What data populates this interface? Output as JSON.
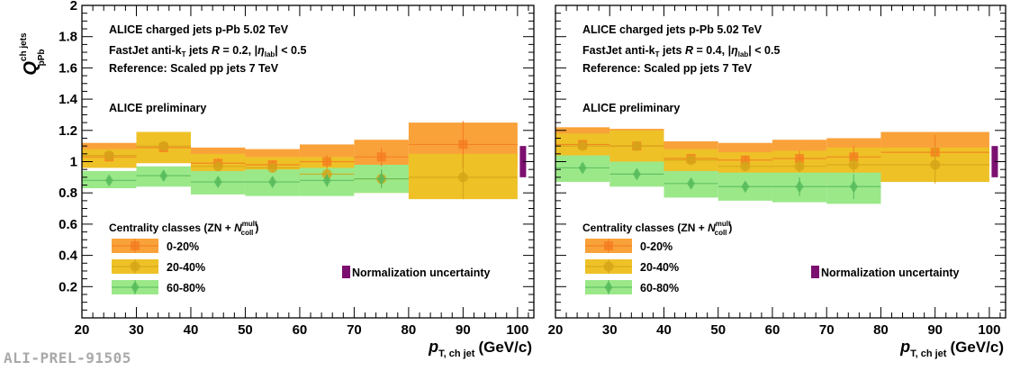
{
  "footer_id": "ALI-PREL-91505",
  "colors": {
    "c0_20": "#f47a1f",
    "c0_20_fill": "#f9a23a",
    "c20_40": "#d4a418",
    "c20_40_fill": "#eec127",
    "c60_80": "#54b95a",
    "c60_80_fill": "#9be889",
    "norm": "#7b1070"
  },
  "chart_data": [
    {
      "type": "scatter",
      "ylabel": "Q",
      "ylabel_sup": "ch jets",
      "ylabel_sub": "pPb",
      "xlabel": "p",
      "xlabel_sub": "T, ch jet",
      "xlabel_unit": "(GeV/c)",
      "xlim": [
        20,
        103
      ],
      "ylim": [
        0,
        2
      ],
      "x_ticks": [
        "20",
        "30",
        "40",
        "50",
        "60",
        "70",
        "80",
        "90",
        "100"
      ],
      "y_ticks": [
        "0.2",
        "0.4",
        "0.6",
        "0.8",
        "1",
        "1.2",
        "1.4",
        "1.6",
        "1.8",
        "2"
      ],
      "annotations": [
        "ALICE charged jets p-Pb 5.02 TeV",
        "FastJet anti-kT jets R = 0.2, |ηlab| < 0.5",
        "Reference: Scaled pp jets 7 TeV",
        "ALICE preliminary"
      ],
      "legend_title": "Centrality classes (ZN + Ncoll mult)",
      "legend_placement": "bottom-left",
      "normalization_label": "Normalization uncertainty",
      "normalization_band": {
        "x": 101,
        "ylow": 0.9,
        "yhigh": 1.1
      },
      "series": [
        {
          "name": "0-20%",
          "marker": "square",
          "bins": [
            [
              20,
              30
            ],
            [
              30,
              40
            ],
            [
              40,
              50
            ],
            [
              50,
              60
            ],
            [
              60,
              70
            ],
            [
              70,
              80
            ],
            [
              80,
              100
            ]
          ],
          "values": [
            1.03,
            1.09,
            0.99,
            0.98,
            1.0,
            1.03,
            1.11
          ],
          "stat_low": [
            1.01,
            1.06,
            0.96,
            0.95,
            0.96,
            0.97,
            0.96
          ],
          "stat_high": [
            1.05,
            1.12,
            1.02,
            1.01,
            1.04,
            1.09,
            1.26
          ],
          "sys_low": [
            0.98,
            1.0,
            0.94,
            0.92,
            0.92,
            0.91,
            0.97
          ],
          "sys_high": [
            1.12,
            1.19,
            1.09,
            1.08,
            1.11,
            1.14,
            1.25
          ]
        },
        {
          "name": "20-40%",
          "marker": "circle",
          "bins": [
            [
              20,
              30
            ],
            [
              30,
              40
            ],
            [
              40,
              50
            ],
            [
              50,
              60
            ],
            [
              60,
              70
            ],
            [
              70,
              80
            ],
            [
              80,
              100
            ]
          ],
          "values": [
            1.04,
            1.1,
            0.97,
            0.96,
            0.92,
            0.89,
            0.9
          ],
          "stat_low": [
            1.02,
            1.07,
            0.94,
            0.93,
            0.88,
            0.84,
            0.76
          ],
          "stat_high": [
            1.06,
            1.13,
            1.0,
            0.99,
            0.96,
            0.94,
            1.04
          ],
          "sys_low": [
            0.96,
            0.99,
            0.9,
            0.88,
            0.84,
            0.8,
            0.76
          ],
          "sys_high": [
            1.08,
            1.19,
            1.05,
            1.03,
            1.03,
            0.98,
            1.05
          ]
        },
        {
          "name": "60-80%",
          "marker": "diamond",
          "bins": [
            [
              20,
              30
            ],
            [
              30,
              40
            ],
            [
              40,
              50
            ],
            [
              50,
              60
            ],
            [
              60,
              70
            ],
            [
              70,
              80
            ]
          ],
          "values": [
            0.88,
            0.91,
            0.87,
            0.87,
            0.88,
            0.89
          ],
          "stat_low": [
            0.86,
            0.88,
            0.84,
            0.84,
            0.84,
            0.83
          ],
          "stat_high": [
            0.9,
            0.94,
            0.9,
            0.9,
            0.92,
            0.95
          ],
          "sys_low": [
            0.83,
            0.84,
            0.79,
            0.78,
            0.78,
            0.8
          ],
          "sys_high": [
            0.94,
            0.97,
            0.94,
            0.95,
            0.96,
            0.98
          ]
        }
      ]
    },
    {
      "type": "scatter",
      "ylabel": "",
      "xlabel": "p",
      "xlabel_sub": "T, ch jet",
      "xlabel_unit": "(GeV/c)",
      "xlim": [
        20,
        103
      ],
      "ylim": [
        0,
        2
      ],
      "x_ticks": [
        "20",
        "30",
        "40",
        "50",
        "60",
        "70",
        "80",
        "90",
        "100"
      ],
      "y_ticks": [],
      "annotations": [
        "ALICE charged jets p-Pb 5.02 TeV",
        "FastJet anti-kT jets R = 0.4, |ηlab| < 0.5",
        "Reference: Scaled pp jets 7 TeV",
        "ALICE preliminary"
      ],
      "legend_title": "Centrality classes (ZN + Ncoll mult)",
      "legend_placement": "bottom-left",
      "normalization_label": "Normalization uncertainty",
      "normalization_band": {
        "x": 101,
        "ylow": 0.9,
        "yhigh": 1.1
      },
      "series": [
        {
          "name": "0-20%",
          "marker": "square",
          "bins": [
            [
              20,
              30
            ],
            [
              30,
              40
            ],
            [
              40,
              50
            ],
            [
              50,
              60
            ],
            [
              60,
              70
            ],
            [
              70,
              80
            ],
            [
              80,
              100
            ]
          ],
          "values": [
            1.11,
            1.1,
            1.02,
            1.01,
            1.02,
            1.03,
            1.06
          ],
          "stat_low": [
            1.09,
            1.08,
            0.99,
            0.98,
            0.97,
            0.96,
            0.95
          ],
          "stat_high": [
            1.13,
            1.12,
            1.05,
            1.04,
            1.07,
            1.1,
            1.17
          ],
          "sys_low": [
            1.03,
            1.02,
            0.95,
            0.94,
            0.93,
            0.92,
            0.97
          ],
          "sys_high": [
            1.22,
            1.21,
            1.13,
            1.12,
            1.14,
            1.15,
            1.19
          ]
        },
        {
          "name": "20-40%",
          "marker": "circle",
          "bins": [
            [
              20,
              30
            ],
            [
              30,
              40
            ],
            [
              40,
              50
            ],
            [
              50,
              60
            ],
            [
              60,
              70
            ],
            [
              70,
              80
            ],
            [
              80,
              100
            ]
          ],
          "values": [
            1.1,
            1.1,
            1.01,
            0.97,
            0.97,
            0.98,
            0.98
          ],
          "stat_low": [
            1.08,
            1.08,
            0.98,
            0.94,
            0.93,
            0.93,
            0.86
          ],
          "stat_high": [
            1.12,
            1.12,
            1.04,
            1.0,
            1.01,
            1.03,
            1.1
          ],
          "sys_low": [
            1.0,
            0.99,
            0.9,
            0.87,
            0.86,
            0.86,
            0.87
          ],
          "sys_high": [
            1.18,
            1.2,
            1.08,
            1.06,
            1.07,
            1.09,
            1.09
          ]
        },
        {
          "name": "60-80%",
          "marker": "diamond",
          "bins": [
            [
              20,
              30
            ],
            [
              30,
              40
            ],
            [
              40,
              50
            ],
            [
              50,
              60
            ],
            [
              60,
              70
            ],
            [
              70,
              80
            ]
          ],
          "values": [
            0.96,
            0.92,
            0.86,
            0.84,
            0.84,
            0.84
          ],
          "stat_low": [
            0.93,
            0.89,
            0.83,
            0.81,
            0.78,
            0.76
          ],
          "stat_high": [
            0.99,
            0.95,
            0.89,
            0.87,
            0.9,
            0.92
          ],
          "sys_low": [
            0.87,
            0.84,
            0.77,
            0.75,
            0.74,
            0.73
          ],
          "sys_high": [
            1.04,
            1.0,
            0.94,
            0.93,
            0.93,
            0.93
          ]
        }
      ]
    }
  ]
}
